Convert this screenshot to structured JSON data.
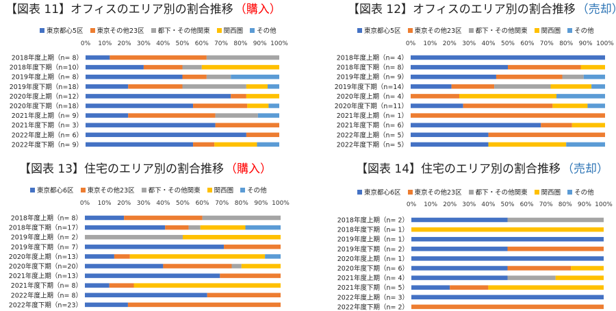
{
  "legend_labels": [
    "東京都心5区",
    "東京その他23区",
    "都下・その他関東",
    "関西圏",
    "その他"
  ],
  "legend_labels_residential": [
    "東京都心6区",
    "東京その他23区",
    "都下・その他関東",
    "関西圏",
    "その他"
  ],
  "colors": [
    "#4472C4",
    "#ED7D31",
    "#A5A5A5",
    "#FFC000",
    "#5B9BD5"
  ],
  "accent_color": "#FF0000",
  "accent_color_sell": "#2E75B6",
  "chart_data": [
    {
      "type": "bar",
      "orientation": "horizontal-stacked-percent",
      "title": "【図表 11】オフィスのエリア別の割合推移",
      "title_suffix": "（購入）",
      "xlim": [
        0,
        100
      ],
      "x_ticks": [
        "0%",
        "10%",
        "20%",
        "30%",
        "40%",
        "50%",
        "60%",
        "70%",
        "80%",
        "90%",
        "100%"
      ],
      "categories": [
        "2018年度上期（n= 8）",
        "2018年度下期（n=10）",
        "2019年度上期（n= 8）",
        "2019年度下期（n=18）",
        "2020年度上期（n=12）",
        "2020年度下期（n=18）",
        "2021年度上期（n= 9）",
        "2021年度下期（n= 3）",
        "2022年度上期（n= 6）",
        "2022年度下期（n= 9）"
      ],
      "series": [
        {
          "name": "東京都心5区",
          "values": [
            12.5,
            30,
            50,
            22,
            75,
            55.5,
            22,
            67,
            83,
            55.5
          ]
        },
        {
          "name": "東京その他23区",
          "values": [
            50,
            20,
            12.5,
            28,
            8,
            28,
            45,
            33,
            17,
            11
          ]
        },
        {
          "name": "都下・その他関東",
          "values": [
            37.5,
            10,
            12.5,
            33,
            0,
            0,
            22,
            0,
            0,
            0
          ]
        },
        {
          "name": "関西圏",
          "values": [
            0,
            40,
            0,
            11,
            17,
            11,
            0,
            0,
            0,
            22
          ]
        },
        {
          "name": "その他",
          "values": [
            0,
            0,
            25,
            6,
            0,
            5.5,
            11,
            0,
            0,
            11.5
          ]
        }
      ]
    },
    {
      "type": "bar",
      "orientation": "horizontal-stacked-percent",
      "title": "【図表 12】オフィスのエリア別の割合推移",
      "title_suffix": "（売却）",
      "xlim": [
        0,
        100
      ],
      "x_ticks": [
        "0%",
        "10%",
        "20%",
        "30%",
        "40%",
        "50%",
        "60%",
        "70%",
        "80%",
        "90%",
        "100%"
      ],
      "categories": [
        "2018年度上期（n= 4）",
        "2018年度下期（n= 8）",
        "2019年度上期（n= 9）",
        "2019年度下期（n=14）",
        "2020年度上期（n= 4）",
        "2020年度下期（n=11）",
        "2021年度上期（n= 1）",
        "2021年度下期（n= 6）",
        "2022年度上期（n= 5）",
        "2022年度下期（n= 5）"
      ],
      "series": [
        {
          "name": "東京都心5区",
          "values": [
            100,
            50,
            44,
            21,
            0,
            27,
            0,
            67,
            40,
            40
          ]
        },
        {
          "name": "東京その他23区",
          "values": [
            0,
            37.5,
            34,
            22,
            25,
            46,
            100,
            16,
            60,
            0
          ]
        },
        {
          "name": "都下・その他関東",
          "values": [
            0,
            0,
            11,
            29,
            0,
            0,
            0,
            0,
            0,
            0
          ]
        },
        {
          "name": "関西圏",
          "values": [
            0,
            12.5,
            0,
            21,
            50,
            18,
            0,
            17,
            0,
            40
          ]
        },
        {
          "name": "その他",
          "values": [
            0,
            0,
            11,
            7,
            25,
            9,
            0,
            0,
            0,
            20
          ]
        }
      ]
    },
    {
      "type": "bar",
      "orientation": "horizontal-stacked-percent",
      "title": "【図表 13】住宅のエリア別の割合推移",
      "title_suffix": "（購入）",
      "xlim": [
        0,
        100
      ],
      "x_ticks": [
        "0%",
        "10%",
        "20%",
        "30%",
        "40%",
        "50%",
        "60%",
        "70%",
        "80%",
        "90%",
        "100%"
      ],
      "categories": [
        "2018年度上期（n= 8）",
        "2018年度下期（n=17）",
        "2019年度上期（n= 2）",
        "2019年度下期（n= 7）",
        "2020年度上期（n=13）",
        "2020年度下期（n=20）",
        "2021年度上期（n=13）",
        "2021年度下期（n= 8）",
        "2022年度上期（n= 8）",
        "2022年度下期（n=23）"
      ],
      "series": [
        {
          "name": "東京都心6区",
          "values": [
            20,
            41,
            0,
            71,
            15,
            40,
            69,
            12.5,
            62.5,
            22
          ]
        },
        {
          "name": "東京その他23区",
          "values": [
            40,
            12,
            0,
            29,
            8,
            35,
            31,
            12.5,
            37.5,
            78
          ]
        },
        {
          "name": "都下・その他関東",
          "values": [
            40,
            6,
            50,
            0,
            0,
            5,
            0,
            0,
            0,
            0
          ]
        },
        {
          "name": "関西圏",
          "values": [
            0,
            23,
            50,
            0,
            69,
            20,
            0,
            75,
            0,
            0
          ]
        },
        {
          "name": "その他",
          "values": [
            0,
            18,
            0,
            0,
            8,
            0,
            0,
            0,
            0,
            0
          ]
        }
      ]
    },
    {
      "type": "bar",
      "orientation": "horizontal-stacked-percent",
      "title": "【図表 14】住宅のエリア別の割合推移",
      "title_suffix": "（売却）",
      "xlim": [
        0,
        100
      ],
      "x_ticks": [
        "0%",
        "10%",
        "20%",
        "30%",
        "40%",
        "50%",
        "60%",
        "70%",
        "80%",
        "90%",
        "100%"
      ],
      "categories": [
        "2018年度上期（n= 2）",
        "2018年度下期（n= 1）",
        "2019年度上期（n= 1）",
        "2019年度下期（n= 2）",
        "2020年度上期（n= 1）",
        "2020年度下期（n= 6）",
        "2021年度上期（n= 4）",
        "2021年度下期（n= 5）",
        "2022年度上期（n= 3）",
        "2022年度下期（n= 2）"
      ],
      "series": [
        {
          "name": "東京都心6区",
          "values": [
            50,
            0,
            100,
            50,
            100,
            50,
            50,
            20,
            100,
            0
          ]
        },
        {
          "name": "東京その他23区",
          "values": [
            0,
            0,
            0,
            50,
            0,
            33,
            0,
            20,
            0,
            100
          ]
        },
        {
          "name": "都下・その他関東",
          "values": [
            50,
            0,
            0,
            0,
            0,
            0,
            25,
            0,
            0,
            0
          ]
        },
        {
          "name": "関西圏",
          "values": [
            0,
            100,
            0,
            0,
            0,
            17,
            25,
            60,
            0,
            0
          ]
        },
        {
          "name": "その他",
          "values": [
            0,
            0,
            0,
            0,
            0,
            0,
            0,
            0,
            0,
            0
          ]
        }
      ]
    }
  ]
}
